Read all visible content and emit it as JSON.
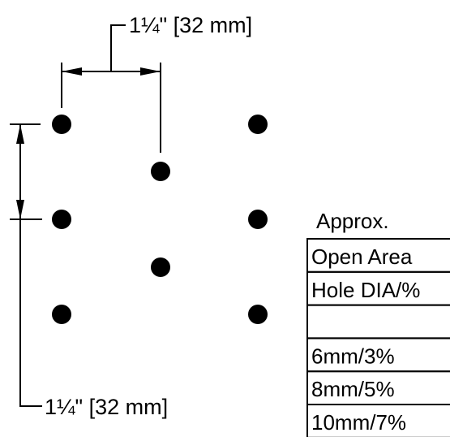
{
  "dimensions": {
    "horizontal_label": "1¼\" [32 mm]",
    "vertical_label": "1¼\" [32 mm]"
  },
  "table": {
    "heading": "Approx.",
    "rows": [
      {
        "text": "Open Area"
      },
      {
        "text": "Hole DIA/%"
      },
      {
        "text": ""
      },
      {
        "text": "6mm/3%"
      },
      {
        "text": "8mm/5%"
      },
      {
        "text": "10mm/7%"
      }
    ]
  },
  "holes": [
    {
      "column": 1,
      "row": 1
    },
    {
      "column": 3,
      "row": 1
    },
    {
      "column": 2,
      "row": 2
    },
    {
      "column": 1,
      "row": 3
    },
    {
      "column": 3,
      "row": 3
    },
    {
      "column": 2,
      "row": 4
    },
    {
      "column": 1,
      "row": 5
    },
    {
      "column": 3,
      "row": 5
    }
  ],
  "colors": {
    "ink": "#000000",
    "background": "#ffffff"
  }
}
